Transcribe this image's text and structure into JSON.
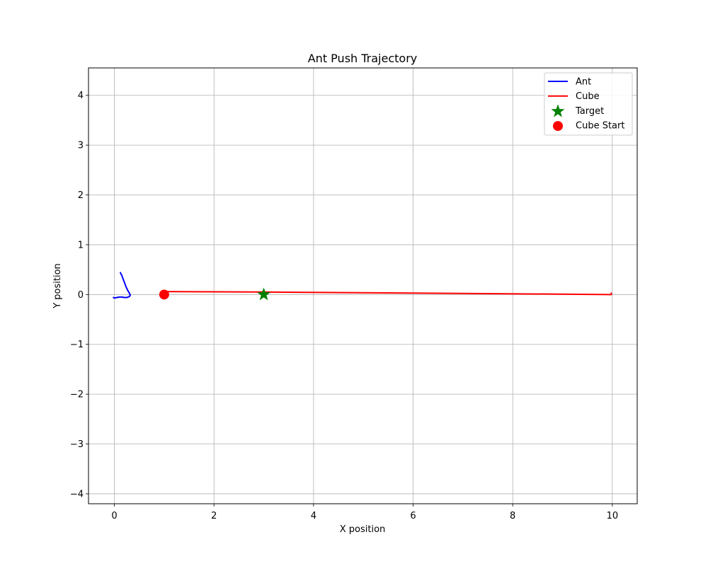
{
  "chart_data": {
    "type": "line",
    "title": "Ant Push Trajectory",
    "xlabel": "X position",
    "ylabel": "Y position",
    "xlim": [
      -0.52,
      10.5
    ],
    "ylim": [
      -4.2,
      4.55
    ],
    "xticks": [
      0,
      2,
      4,
      6,
      8,
      10
    ],
    "yticks": [
      -4,
      -3,
      -2,
      -1,
      0,
      1,
      2,
      3,
      4
    ],
    "grid": true,
    "legend_position": "top-right",
    "series": [
      {
        "name": "Ant",
        "kind": "line",
        "color": "#0000ff",
        "x": [
          -0.02,
          0.0,
          0.05,
          0.1,
          0.15,
          0.2,
          0.25,
          0.3,
          0.32,
          0.3,
          0.27,
          0.24,
          0.21,
          0.18,
          0.15,
          0.12
        ],
        "y": [
          -0.06,
          -0.07,
          -0.06,
          -0.05,
          -0.05,
          -0.06,
          -0.06,
          -0.04,
          -0.01,
          0.03,
          0.08,
          0.14,
          0.22,
          0.3,
          0.38,
          0.44
        ]
      },
      {
        "name": "Cube",
        "kind": "line",
        "color": "#ff0000",
        "x": [
          1.0,
          3.0,
          6.0,
          9.98,
          9.98
        ],
        "y": [
          0.06,
          0.05,
          0.03,
          0.0,
          0.03
        ]
      },
      {
        "name": "Target",
        "kind": "marker",
        "marker": "star",
        "color": "#008000",
        "x": [
          3.0
        ],
        "y": [
          0.0
        ]
      },
      {
        "name": "Cube Start",
        "kind": "marker",
        "marker": "circle",
        "color": "#ff0000",
        "x": [
          1.0
        ],
        "y": [
          0.0
        ]
      }
    ]
  }
}
